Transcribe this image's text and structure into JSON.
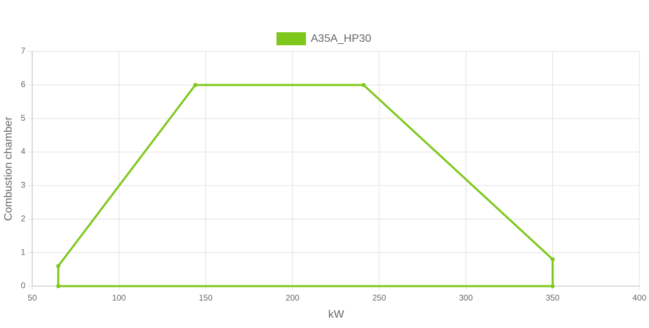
{
  "chart_data": {
    "type": "line",
    "x": [
      65,
      65,
      144,
      241,
      350,
      350,
      65
    ],
    "series": [
      {
        "name": "A35A_HP30",
        "color": "#7ec81c",
        "values": [
          0,
          0.6,
          6,
          6,
          0.8,
          0,
          0
        ]
      }
    ],
    "xlabel": "kW",
    "ylabel": "Combustion chamber",
    "xlim": [
      50,
      400
    ],
    "xticks": [
      50,
      100,
      150,
      200,
      250,
      300,
      350,
      400
    ],
    "ylim": [
      0,
      7
    ],
    "yticks": [
      0,
      1,
      2,
      3,
      4,
      5,
      6,
      7
    ],
    "grid": true,
    "legend": "top"
  }
}
